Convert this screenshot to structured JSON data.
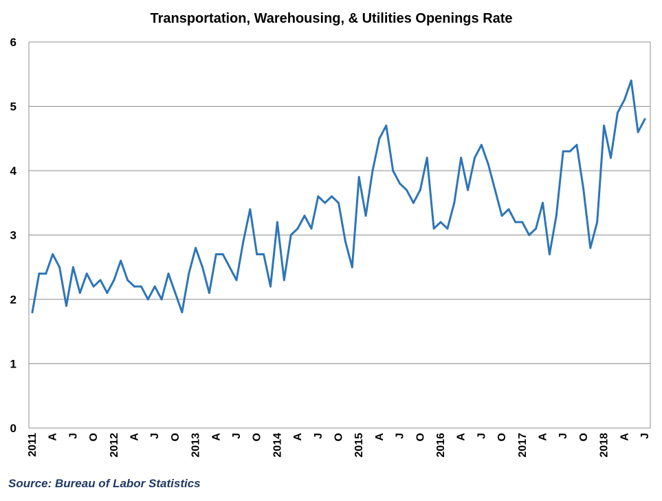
{
  "chart_data": {
    "type": "line",
    "title": "Transportation, Warehousing, & Utilities Openings Rate",
    "source": "Source: Bureau of Labor Statistics",
    "xlabel": "",
    "ylabel": "",
    "ylim": [
      0,
      6
    ],
    "yticks": [
      "0",
      "1",
      "2",
      "3",
      "4",
      "5",
      "6"
    ],
    "grid": true,
    "legend": "none",
    "x_tick_labels": [
      "2011",
      "A",
      "J",
      "O",
      "2012",
      "A",
      "J",
      "O",
      "2013",
      "A",
      "J",
      "O",
      "2014",
      "A",
      "J",
      "O",
      "2015",
      "A",
      "J",
      "O",
      "2016",
      "A",
      "J",
      "O",
      "2017",
      "A",
      "J",
      "O",
      "2018",
      "A",
      "J"
    ],
    "colors": {
      "line": "#2e75b6"
    },
    "series": [
      {
        "values": [
          1.8,
          2.4,
          2.4,
          2.7,
          2.5,
          1.9,
          2.5,
          2.1,
          2.4,
          2.2,
          2.3,
          2.1,
          2.3,
          2.6,
          2.3,
          2.2,
          2.2,
          2.0,
          2.2,
          2.0,
          2.4,
          2.1,
          1.8,
          2.4,
          2.8,
          2.5,
          2.1,
          2.7,
          2.7,
          2.5,
          2.3,
          2.9,
          3.4,
          2.7,
          2.7,
          2.2,
          3.2,
          2.3,
          3.0,
          3.1,
          3.3,
          3.1,
          3.6,
          3.5,
          3.6,
          3.5,
          2.9,
          2.5,
          3.9,
          3.3,
          4.0,
          4.5,
          4.7,
          4.0,
          3.8,
          3.7,
          3.5,
          3.7,
          4.2,
          3.1,
          3.2,
          3.1,
          3.5,
          4.2,
          3.7,
          4.2,
          4.4,
          4.1,
          3.7,
          3.3,
          3.4,
          3.2,
          3.2,
          3.0,
          3.1,
          3.5,
          2.7,
          3.3,
          4.3,
          4.3,
          4.4,
          3.7,
          2.8,
          3.2,
          4.7,
          4.2,
          4.9,
          5.1,
          5.4,
          4.6,
          4.8
        ]
      }
    ]
  }
}
